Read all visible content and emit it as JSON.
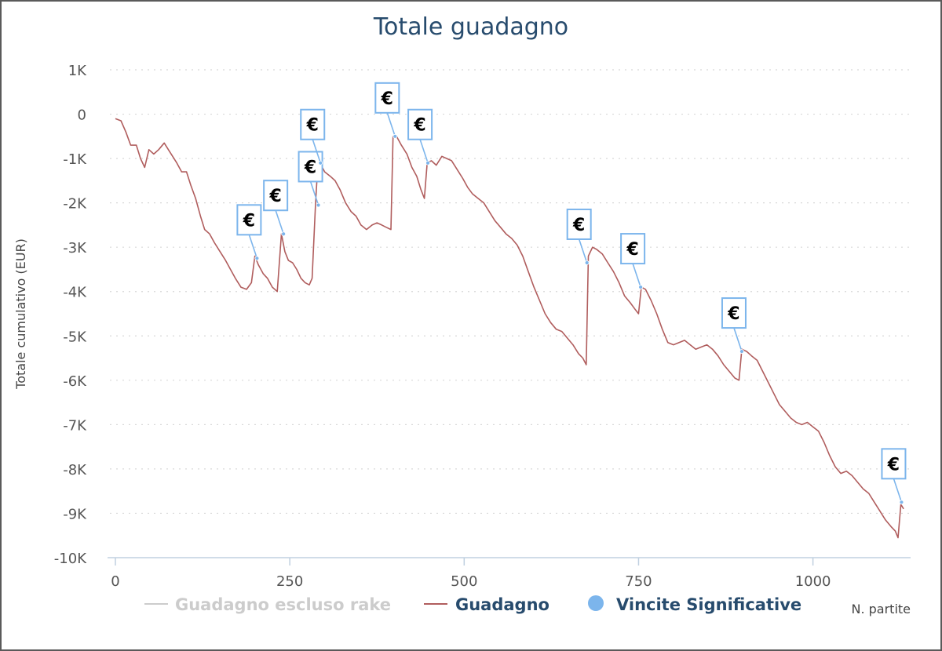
{
  "chart_data": {
    "type": "line",
    "title": "Totale guadagno",
    "xlabel": "N. partite",
    "ylabel": "Totale cumulativo (EUR)",
    "xlim": [
      0,
      1140
    ],
    "ylim": [
      -10000,
      1000
    ],
    "x_ticks": [
      0,
      250,
      500,
      750,
      1000
    ],
    "x_tick_labels": [
      "0",
      "250",
      "500",
      "750",
      "1000"
    ],
    "y_ticks": [
      1000,
      0,
      -1000,
      -2000,
      -3000,
      -4000,
      -5000,
      -6000,
      -7000,
      -8000,
      -9000,
      -10000
    ],
    "y_tick_labels": [
      "1K",
      "0",
      "-1K",
      "-2K",
      "-3K",
      "-4K",
      "-5K",
      "-6K",
      "-7K",
      "-8K",
      "-9K",
      "-10K"
    ],
    "grid": true,
    "legend_position": "bottom",
    "series": [
      {
        "name": "Guadagno escluso rake",
        "color": "#cccccc",
        "hidden": true,
        "points": []
      },
      {
        "name": "Guadagno",
        "color": "#b05d5d",
        "points": [
          [
            0,
            -100
          ],
          [
            8,
            -150
          ],
          [
            15,
            -400
          ],
          [
            22,
            -700
          ],
          [
            30,
            -700
          ],
          [
            36,
            -1000
          ],
          [
            42,
            -1200
          ],
          [
            48,
            -800
          ],
          [
            55,
            -900
          ],
          [
            62,
            -800
          ],
          [
            70,
            -650
          ],
          [
            76,
            -800
          ],
          [
            82,
            -950
          ],
          [
            88,
            -1100
          ],
          [
            95,
            -1300
          ],
          [
            102,
            -1300
          ],
          [
            108,
            -1600
          ],
          [
            115,
            -1900
          ],
          [
            122,
            -2300
          ],
          [
            128,
            -2600
          ],
          [
            135,
            -2700
          ],
          [
            142,
            -2900
          ],
          [
            150,
            -3100
          ],
          [
            158,
            -3300
          ],
          [
            165,
            -3500
          ],
          [
            172,
            -3700
          ],
          [
            180,
            -3900
          ],
          [
            188,
            -3950
          ],
          [
            195,
            -3800
          ],
          [
            200,
            -3200
          ],
          [
            205,
            -3400
          ],
          [
            212,
            -3600
          ],
          [
            218,
            -3700
          ],
          [
            225,
            -3900
          ],
          [
            232,
            -4000
          ],
          [
            238,
            -2700
          ],
          [
            243,
            -3100
          ],
          [
            248,
            -3300
          ],
          [
            254,
            -3350
          ],
          [
            260,
            -3500
          ],
          [
            266,
            -3700
          ],
          [
            272,
            -3800
          ],
          [
            278,
            -3850
          ],
          [
            282,
            -3700
          ],
          [
            287,
            -2000
          ],
          [
            290,
            -1200
          ],
          [
            295,
            -1150
          ],
          [
            300,
            -1300
          ],
          [
            308,
            -1400
          ],
          [
            315,
            -1500
          ],
          [
            322,
            -1700
          ],
          [
            330,
            -2000
          ],
          [
            338,
            -2200
          ],
          [
            345,
            -2300
          ],
          [
            352,
            -2500
          ],
          [
            360,
            -2600
          ],
          [
            368,
            -2500
          ],
          [
            375,
            -2450
          ],
          [
            382,
            -2500
          ],
          [
            388,
            -2550
          ],
          [
            395,
            -2600
          ],
          [
            398,
            -500
          ],
          [
            403,
            -500
          ],
          [
            410,
            -700
          ],
          [
            418,
            -900
          ],
          [
            425,
            -1200
          ],
          [
            432,
            -1400
          ],
          [
            438,
            -1700
          ],
          [
            443,
            -1900
          ],
          [
            447,
            -1100
          ],
          [
            453,
            -1050
          ],
          [
            460,
            -1150
          ],
          [
            468,
            -950
          ],
          [
            475,
            -1000
          ],
          [
            482,
            -1050
          ],
          [
            490,
            -1250
          ],
          [
            498,
            -1450
          ],
          [
            505,
            -1650
          ],
          [
            512,
            -1800
          ],
          [
            520,
            -1900
          ],
          [
            528,
            -2000
          ],
          [
            536,
            -2200
          ],
          [
            544,
            -2400
          ],
          [
            552,
            -2550
          ],
          [
            560,
            -2700
          ],
          [
            568,
            -2800
          ],
          [
            576,
            -2950
          ],
          [
            584,
            -3200
          ],
          [
            592,
            -3550
          ],
          [
            600,
            -3900
          ],
          [
            608,
            -4200
          ],
          [
            616,
            -4500
          ],
          [
            624,
            -4700
          ],
          [
            632,
            -4850
          ],
          [
            640,
            -4900
          ],
          [
            648,
            -5050
          ],
          [
            656,
            -5200
          ],
          [
            664,
            -5400
          ],
          [
            670,
            -5500
          ],
          [
            675,
            -5650
          ],
          [
            678,
            -3200
          ],
          [
            684,
            -3000
          ],
          [
            690,
            -3050
          ],
          [
            698,
            -3150
          ],
          [
            706,
            -3350
          ],
          [
            714,
            -3550
          ],
          [
            722,
            -3800
          ],
          [
            730,
            -4100
          ],
          [
            738,
            -4250
          ],
          [
            745,
            -4400
          ],
          [
            750,
            -4500
          ],
          [
            754,
            -3900
          ],
          [
            760,
            -3950
          ],
          [
            768,
            -4200
          ],
          [
            776,
            -4500
          ],
          [
            784,
            -4850
          ],
          [
            792,
            -5150
          ],
          [
            800,
            -5200
          ],
          [
            808,
            -5150
          ],
          [
            816,
            -5100
          ],
          [
            824,
            -5200
          ],
          [
            832,
            -5300
          ],
          [
            840,
            -5250
          ],
          [
            848,
            -5200
          ],
          [
            856,
            -5300
          ],
          [
            864,
            -5450
          ],
          [
            872,
            -5650
          ],
          [
            880,
            -5800
          ],
          [
            888,
            -5950
          ],
          [
            894,
            -6000
          ],
          [
            898,
            -5300
          ],
          [
            905,
            -5350
          ],
          [
            912,
            -5450
          ],
          [
            920,
            -5550
          ],
          [
            928,
            -5800
          ],
          [
            936,
            -6050
          ],
          [
            944,
            -6300
          ],
          [
            952,
            -6550
          ],
          [
            960,
            -6700
          ],
          [
            968,
            -6850
          ],
          [
            976,
            -6950
          ],
          [
            984,
            -7000
          ],
          [
            992,
            -6950
          ],
          [
            1000,
            -7050
          ],
          [
            1008,
            -7150
          ],
          [
            1016,
            -7400
          ],
          [
            1024,
            -7700
          ],
          [
            1032,
            -7950
          ],
          [
            1040,
            -8100
          ],
          [
            1048,
            -8050
          ],
          [
            1056,
            -8150
          ],
          [
            1064,
            -8300
          ],
          [
            1072,
            -8450
          ],
          [
            1080,
            -8550
          ],
          [
            1088,
            -8750
          ],
          [
            1096,
            -8950
          ],
          [
            1104,
            -9150
          ],
          [
            1112,
            -9300
          ],
          [
            1118,
            -9400
          ],
          [
            1122,
            -9550
          ],
          [
            1126,
            -8800
          ],
          [
            1130,
            -8900
          ]
        ]
      },
      {
        "name": "Vincite Significative",
        "color": "#7cb5ec",
        "marker": "€",
        "points": [
          [
            203,
            -3250
          ],
          [
            241,
            -2700
          ],
          [
            291,
            -2050
          ],
          [
            294,
            -1100
          ],
          [
            401,
            -500
          ],
          [
            448,
            -1100
          ],
          [
            676,
            -3350
          ],
          [
            753,
            -3900
          ],
          [
            898,
            -5350
          ],
          [
            1127,
            -8750
          ]
        ]
      }
    ]
  }
}
